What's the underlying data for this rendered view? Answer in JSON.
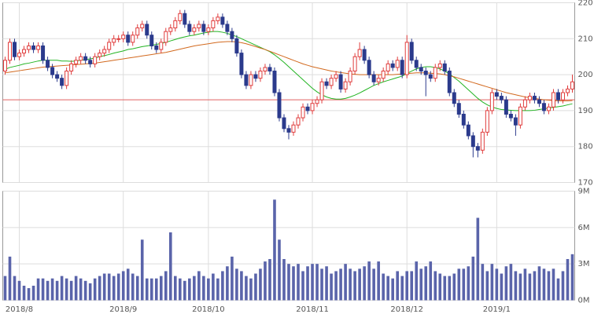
{
  "chart_data": {
    "type": "candlestick",
    "categories": [
      null,
      null,
      null,
      "2018/8",
      null,
      null,
      null,
      null,
      null,
      null,
      null,
      null,
      null,
      null,
      null,
      null,
      null,
      null,
      null,
      null,
      null,
      null,
      null,
      null,
      null,
      "2018/9",
      null,
      null,
      null,
      null,
      null,
      null,
      null,
      null,
      null,
      null,
      null,
      null,
      null,
      null,
      null,
      null,
      null,
      "2018/10",
      null,
      null,
      null,
      null,
      null,
      null,
      null,
      null,
      null,
      null,
      null,
      null,
      null,
      null,
      null,
      null,
      null,
      null,
      null,
      null,
      null,
      "2018/11",
      null,
      null,
      null,
      null,
      null,
      null,
      null,
      null,
      null,
      null,
      null,
      null,
      null,
      null,
      null,
      null,
      null,
      null,
      null,
      "2018/12",
      null,
      null,
      null,
      null,
      null,
      null,
      null,
      null,
      null,
      null,
      null,
      null,
      null,
      null,
      null,
      null,
      null,
      null,
      "2019/1",
      null,
      null,
      null,
      null,
      null,
      null,
      null,
      null,
      null,
      null,
      null,
      null,
      null,
      null,
      null,
      null
    ],
    "open": [
      201,
      204,
      209,
      205,
      206,
      207,
      208,
      207,
      208,
      204,
      202,
      200,
      199,
      197,
      201,
      203,
      204,
      205,
      204,
      203,
      205,
      206,
      207,
      209,
      210,
      210,
      211,
      209,
      211,
      213,
      214,
      211,
      208,
      207,
      209,
      212,
      213,
      215,
      217,
      214,
      212,
      213,
      214,
      212,
      213,
      215,
      216,
      214,
      212,
      210,
      206,
      200,
      197,
      200,
      199,
      201,
      202,
      201,
      195,
      188,
      185,
      184,
      186,
      188,
      191,
      190,
      192,
      193,
      198,
      197,
      199,
      200,
      196,
      198,
      201,
      205,
      207,
      204,
      200,
      198,
      199,
      201,
      203,
      202,
      204,
      200,
      209,
      204,
      202,
      201,
      200,
      199,
      202,
      203,
      201,
      195,
      192,
      189,
      186,
      183,
      180,
      179,
      184,
      190,
      195,
      194,
      193,
      189,
      188,
      186,
      191,
      193,
      194,
      193,
      192,
      190,
      191,
      195,
      193,
      195,
      196
    ],
    "high": [
      205,
      210,
      210,
      207,
      208,
      209,
      209,
      209,
      209,
      205,
      203,
      201,
      200,
      202,
      204,
      205,
      206,
      206,
      205,
      206,
      207,
      208,
      210,
      211,
      211,
      212,
      212,
      212,
      214,
      215,
      215,
      212,
      209,
      210,
      213,
      214,
      216,
      218,
      218,
      215,
      214,
      215,
      215,
      214,
      216,
      217,
      217,
      215,
      213,
      211,
      207,
      201,
      201,
      201,
      202,
      203,
      203,
      202,
      196,
      189,
      186,
      187,
      189,
      192,
      192,
      193,
      194,
      199,
      199,
      200,
      201,
      201,
      199,
      202,
      206,
      209,
      208,
      205,
      201,
      200,
      202,
      204,
      204,
      205,
      205,
      211,
      210,
      205,
      203,
      202,
      201,
      203,
      204,
      204,
      202,
      196,
      193,
      190,
      187,
      184,
      181,
      185,
      191,
      196,
      196,
      195,
      194,
      190,
      189,
      192,
      194,
      195,
      195,
      194,
      193,
      192,
      196,
      196,
      196,
      197,
      200
    ],
    "low": [
      200,
      203,
      204,
      204,
      205,
      206,
      206,
      206,
      203,
      201,
      199,
      198,
      196,
      196,
      200,
      202,
      203,
      203,
      202,
      202,
      204,
      205,
      206,
      208,
      209,
      209,
      208,
      208,
      210,
      212,
      210,
      207,
      206,
      206,
      208,
      211,
      212,
      214,
      213,
      211,
      211,
      212,
      211,
      211,
      212,
      214,
      213,
      211,
      209,
      205,
      199,
      196,
      196,
      198,
      198,
      200,
      200,
      194,
      187,
      184,
      182,
      183,
      185,
      187,
      189,
      189,
      191,
      192,
      196,
      196,
      198,
      195,
      195,
      197,
      200,
      204,
      203,
      199,
      197,
      197,
      198,
      200,
      201,
      201,
      199,
      199,
      203,
      201,
      200,
      194,
      198,
      198,
      201,
      200,
      194,
      191,
      188,
      185,
      182,
      177,
      177,
      178,
      183,
      189,
      193,
      192,
      188,
      187,
      183,
      185,
      190,
      192,
      192,
      191,
      189,
      189,
      190,
      192,
      192,
      194,
      195
    ],
    "close": [
      204,
      209,
      205,
      206,
      207,
      208,
      207,
      208,
      204,
      202,
      200,
      199,
      197,
      201,
      203,
      204,
      205,
      204,
      203,
      205,
      206,
      207,
      209,
      210,
      210,
      211,
      209,
      211,
      213,
      214,
      211,
      208,
      207,
      209,
      212,
      213,
      215,
      217,
      214,
      212,
      213,
      214,
      212,
      213,
      215,
      216,
      214,
      212,
      210,
      206,
      200,
      197,
      200,
      199,
      201,
      202,
      201,
      195,
      188,
      185,
      184,
      186,
      188,
      191,
      190,
      192,
      193,
      198,
      197,
      199,
      200,
      196,
      198,
      201,
      205,
      207,
      204,
      200,
      198,
      199,
      201,
      203,
      202,
      204,
      200,
      209,
      204,
      202,
      201,
      200,
      199,
      202,
      203,
      201,
      195,
      192,
      189,
      186,
      183,
      180,
      179,
      184,
      190,
      195,
      194,
      193,
      189,
      188,
      186,
      191,
      193,
      194,
      193,
      192,
      190,
      191,
      195,
      193,
      195,
      196,
      198
    ],
    "up_color": "#e03c3c",
    "down_color": "#2b3a8c",
    "ma": [
      {
        "color": "#22b422",
        "values": [
          201.5,
          202,
          202.3,
          202.6,
          203,
          203.2,
          203.5,
          203.8,
          204,
          204,
          204,
          204,
          203.8,
          203.8,
          203.7,
          203.8,
          204,
          204.2,
          204.4,
          204.6,
          205,
          205.3,
          205.6,
          206,
          206.3,
          206.6,
          207,
          207.2,
          207.5,
          207.8,
          208,
          208.2,
          208.4,
          208.7,
          209,
          209.4,
          209.8,
          210.2,
          210.5,
          210.8,
          211,
          211.3,
          211.6,
          211.8,
          212,
          212,
          211.8,
          211.5,
          211,
          210.6,
          210,
          209.4,
          208.8,
          208.2,
          207.6,
          207,
          206.4,
          205.5,
          204.5,
          203.4,
          202.2,
          201,
          199.8,
          198.6,
          197.4,
          196.2,
          195.2,
          194.4,
          193.8,
          193.4,
          193.2,
          193.2,
          193.4,
          193.8,
          194.3,
          194.9,
          195.6,
          196.3,
          197,
          197.5,
          198,
          198.4,
          198.8,
          199.2,
          199.6,
          200.3,
          201,
          201.6,
          202,
          202.2,
          202.2,
          202,
          201.6,
          201,
          200.2,
          199.2,
          198.2,
          197,
          195.8,
          194.6,
          193.4,
          192.4,
          191.6,
          191,
          190.6,
          190.3,
          190.2,
          190.1,
          190,
          190,
          190,
          190,
          190.1,
          190.3,
          190.5,
          190.7,
          190.9,
          191.1,
          191.3,
          191.6,
          191.9
        ]
      },
      {
        "color": "#d2691e",
        "values": [
          200.5,
          200.7,
          200.9,
          201.1,
          201.3,
          201.5,
          201.7,
          201.9,
          202.1,
          202.2,
          202.3,
          202.4,
          202.5,
          202.6,
          202.7,
          202.8,
          202.9,
          203,
          203.1,
          203.2,
          203.4,
          203.6,
          203.8,
          204,
          204.2,
          204.4,
          204.6,
          204.8,
          205,
          205.2,
          205.4,
          205.6,
          205.8,
          206,
          206.2,
          206.5,
          206.8,
          207.1,
          207.4,
          207.7,
          208,
          208.2,
          208.4,
          208.6,
          208.8,
          209,
          209.1,
          209.2,
          209.2,
          209.1,
          208.9,
          208.6,
          208.2,
          207.8,
          207.4,
          207,
          206.5,
          206,
          205.5,
          205,
          204.5,
          204,
          203.5,
          203,
          202.6,
          202.2,
          201.9,
          201.6,
          201.3,
          201,
          200.8,
          200.6,
          200.4,
          200.2,
          200.1,
          200,
          200,
          200,
          200,
          200,
          200,
          200,
          200,
          200.1,
          200.2,
          200.3,
          200.4,
          200.5,
          200.5,
          200.5,
          200.4,
          200.3,
          200.2,
          200,
          199.7,
          199.4,
          199,
          198.6,
          198.2,
          197.8,
          197.4,
          197,
          196.6,
          196.2,
          195.8,
          195.4,
          195,
          194.7,
          194.4,
          194.1,
          193.8,
          193.6,
          193.4,
          193.2,
          193,
          192.9,
          192.8,
          192.7,
          192.7,
          192.7,
          192.8
        ]
      }
    ],
    "hline": {
      "value": 193,
      "color": "#e06060"
    },
    "ylim": [
      170,
      220
    ],
    "yticks": [
      170,
      180,
      190,
      200,
      210,
      220
    ],
    "grid": true,
    "volume": {
      "color": "#5a64aa",
      "values": [
        2.0,
        3.6,
        2.0,
        1.6,
        1.2,
        1.0,
        1.2,
        1.8,
        1.8,
        1.6,
        1.8,
        1.6,
        2.0,
        1.8,
        1.6,
        2.0,
        1.8,
        1.6,
        1.4,
        1.8,
        2.0,
        2.2,
        2.2,
        2.0,
        2.2,
        2.4,
        2.6,
        2.2,
        2.0,
        5.0,
        1.8,
        1.8,
        1.8,
        2.0,
        2.4,
        5.6,
        2.0,
        1.8,
        1.6,
        1.8,
        2.0,
        2.4,
        2.0,
        1.8,
        2.2,
        1.8,
        2.4,
        2.8,
        3.6,
        2.6,
        2.4,
        2.0,
        1.8,
        2.2,
        2.6,
        3.2,
        3.4,
        8.3,
        5.0,
        3.4,
        3.0,
        2.8,
        3.0,
        2.4,
        2.8,
        3.0,
        3.0,
        2.6,
        2.8,
        2.2,
        2.4,
        2.6,
        3.0,
        2.6,
        2.4,
        2.6,
        2.8,
        3.2,
        2.6,
        3.2,
        2.2,
        2.0,
        1.8,
        2.4,
        2.0,
        2.4,
        2.4,
        3.2,
        2.6,
        2.8,
        3.2,
        2.4,
        2.2,
        2.0,
        2.0,
        2.2,
        2.6,
        2.6,
        2.8,
        3.6,
        6.8,
        3.0,
        2.4,
        3.0,
        2.6,
        2.2,
        2.8,
        3.0,
        2.4,
        2.2,
        2.6,
        2.2,
        2.4,
        2.8,
        2.6,
        2.4,
        2.6,
        1.8,
        2.4,
        3.4,
        3.8
      ],
      "ylim": [
        0,
        9
      ],
      "yticks": [
        {
          "value": 0,
          "label": "0M"
        },
        {
          "value": 3,
          "label": "3M"
        },
        {
          "value": 6,
          "label": "6M"
        },
        {
          "value": 9,
          "label": "9M"
        }
      ]
    }
  }
}
